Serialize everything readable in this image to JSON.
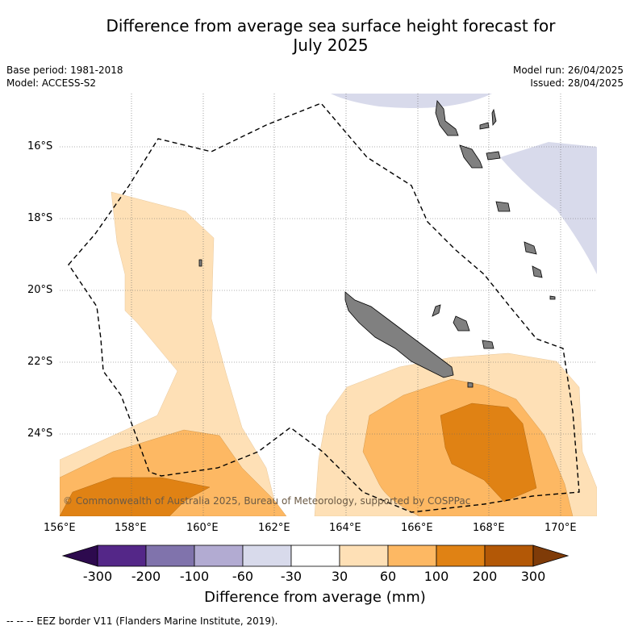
{
  "title_line1": "Difference from average sea surface height forecast for",
  "title_line2": "July 2025",
  "base_period": "Base period: 1981-2018",
  "model": "Model: ACCESS-S2",
  "model_run": "Model run: 26/04/2025",
  "issued": "Issued: 28/04/2025",
  "lat_labels": [
    "16°S",
    "18°S",
    "20°S",
    "22°S",
    "24°S"
  ],
  "lon_labels": [
    "156°E",
    "158°E",
    "160°E",
    "162°E",
    "164°E",
    "166°E",
    "168°E",
    "170°E"
  ],
  "copyright": "© Commonwealth of Australia 2025, Bureau of Meteorology, supported by COSPPac",
  "colorbar": {
    "title": "Difference from average (mm)",
    "ticks": [
      "-300",
      "-200",
      "-100",
      "-60",
      "-30",
      "30",
      "60",
      "100",
      "200",
      "300"
    ],
    "colors": [
      "#2d0a4e",
      "#542788",
      "#8073ac",
      "#b2abd2",
      "#d8daeb",
      "#ffffff",
      "#fee0b6",
      "#fdb863",
      "#e08214",
      "#b35806",
      "#7f3b08"
    ]
  },
  "footer": "-- -- -- EEZ border V11 (Flanders Marine Institute, 2019)."
}
